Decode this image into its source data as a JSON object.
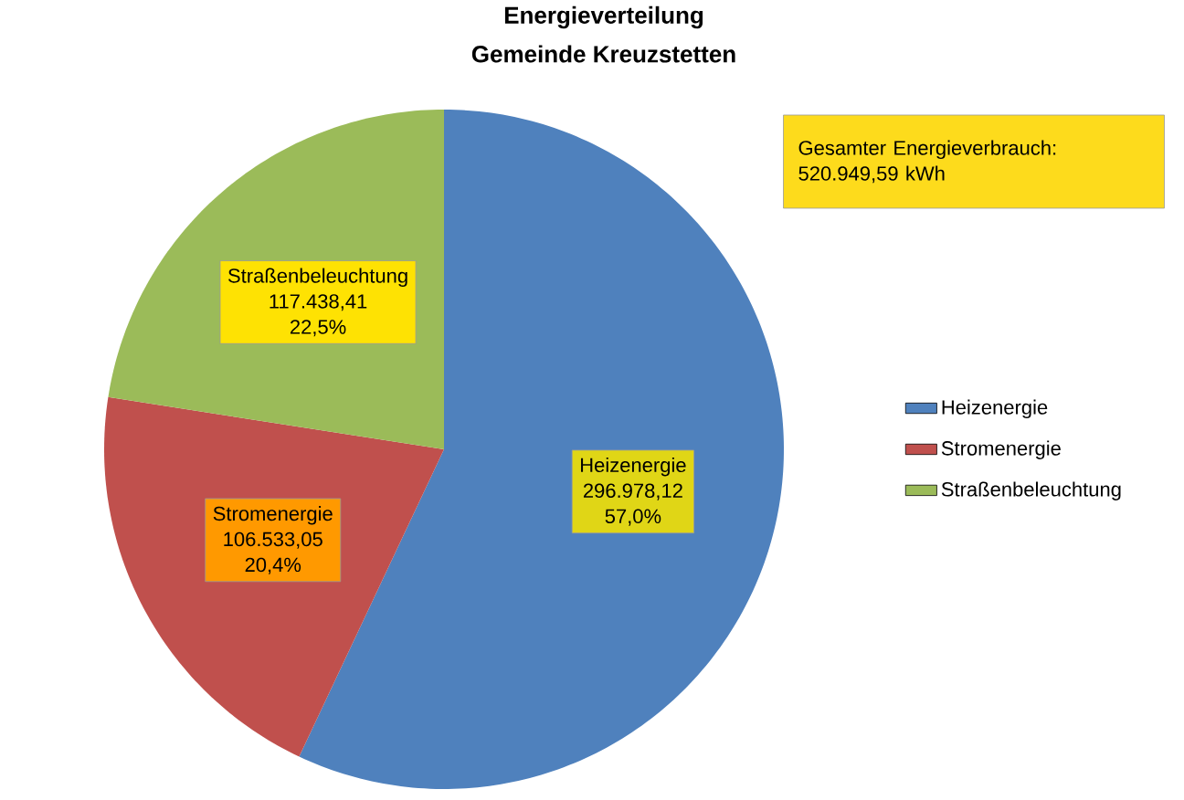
{
  "chart_data": {
    "type": "pie",
    "title": "Energieverteilung",
    "subtitle": "Gemeinde Kreuzstetten",
    "categories": [
      "Heizenergie",
      "Stromenergie",
      "Straßenbeleuchtung"
    ],
    "values": [
      296978.12,
      106533.05,
      117438.41
    ],
    "colors": [
      "#4f81bd",
      "#c0504d",
      "#9bbb59"
    ],
    "value_labels": [
      "296.978,12",
      "106.533,05",
      "117.438,41"
    ],
    "annotations": [
      "Gesamter Energieverbrauch: 520.949,59 kWh",
      "57,0%",
      "20,4%",
      "22,5%"
    ],
    "legend": "right"
  }
}
